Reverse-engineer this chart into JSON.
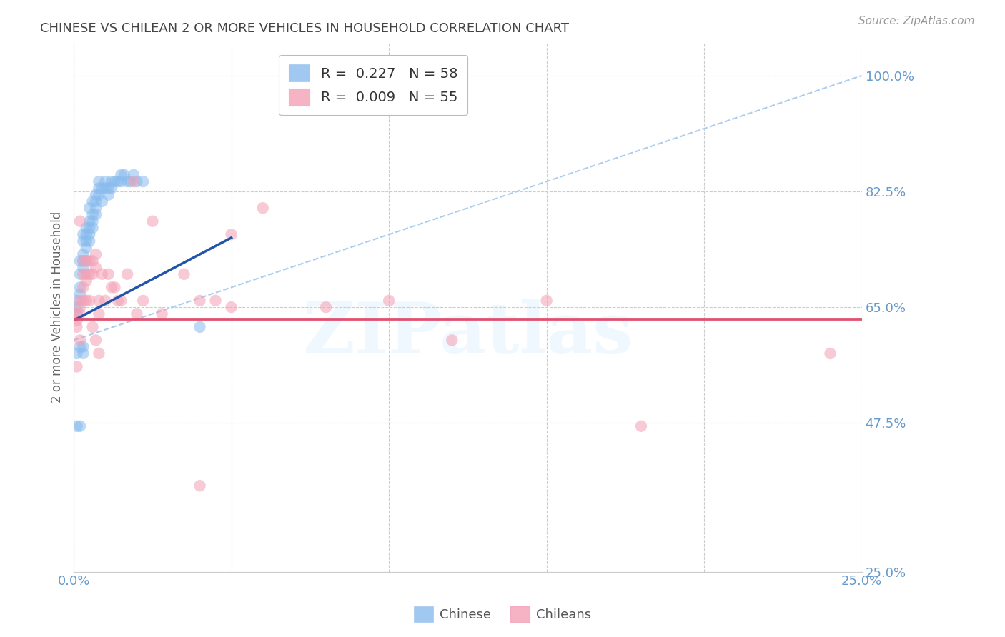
{
  "title": "CHINESE VS CHILEAN 2 OR MORE VEHICLES IN HOUSEHOLD CORRELATION CHART",
  "source": "Source: ZipAtlas.com",
  "ylabel": "2 or more Vehicles in Household",
  "xlim": [
    0.0,
    0.25
  ],
  "ylim": [
    0.25,
    1.05
  ],
  "ytick_vals": [
    0.25,
    0.475,
    0.65,
    0.825,
    1.0
  ],
  "ytick_labels": [
    "25.0%",
    "47.5%",
    "65.0%",
    "82.5%",
    "100.0%"
  ],
  "xtick_vals": [
    0.0,
    0.05,
    0.1,
    0.15,
    0.2,
    0.25
  ],
  "xtick_labels": [
    "0.0%",
    "",
    "",
    "",
    "",
    "25.0%"
  ],
  "legend_chinese": "R =  0.227   N = 58",
  "legend_chilean": "R =  0.009   N = 55",
  "watermark": "ZIPatlas",
  "title_color": "#444444",
  "axis_label_color": "#666666",
  "tick_color": "#6699cc",
  "grid_color": "#cccccc",
  "chinese_color": "#88bbee",
  "chilean_color": "#f4a0b5",
  "trend_chinese_color": "#2255aa",
  "trend_chilean_color": "#e05070",
  "ref_line_color": "#aaccee",
  "chinese_scatter_x": [
    0.001,
    0.001,
    0.001,
    0.002,
    0.002,
    0.002,
    0.002,
    0.003,
    0.003,
    0.003,
    0.003,
    0.003,
    0.004,
    0.004,
    0.004,
    0.004,
    0.004,
    0.005,
    0.005,
    0.005,
    0.005,
    0.005,
    0.006,
    0.006,
    0.006,
    0.006,
    0.007,
    0.007,
    0.007,
    0.007,
    0.008,
    0.008,
    0.008,
    0.009,
    0.009,
    0.01,
    0.01,
    0.011,
    0.011,
    0.012,
    0.012,
    0.013,
    0.014,
    0.015,
    0.015,
    0.016,
    0.017,
    0.018,
    0.019,
    0.02,
    0.022,
    0.001,
    0.002,
    0.001,
    0.002,
    0.003,
    0.003,
    0.04
  ],
  "chinese_scatter_y": [
    0.65,
    0.66,
    0.64,
    0.7,
    0.72,
    0.68,
    0.67,
    0.73,
    0.75,
    0.76,
    0.72,
    0.71,
    0.76,
    0.77,
    0.74,
    0.75,
    0.72,
    0.78,
    0.8,
    0.76,
    0.75,
    0.77,
    0.79,
    0.81,
    0.78,
    0.77,
    0.8,
    0.82,
    0.81,
    0.79,
    0.83,
    0.84,
    0.82,
    0.81,
    0.83,
    0.83,
    0.84,
    0.83,
    0.82,
    0.84,
    0.83,
    0.84,
    0.84,
    0.85,
    0.84,
    0.85,
    0.84,
    0.84,
    0.85,
    0.84,
    0.84,
    0.47,
    0.47,
    0.58,
    0.59,
    0.58,
    0.59,
    0.62
  ],
  "chilean_scatter_x": [
    0.001,
    0.001,
    0.001,
    0.002,
    0.002,
    0.002,
    0.003,
    0.003,
    0.003,
    0.004,
    0.004,
    0.004,
    0.005,
    0.005,
    0.006,
    0.006,
    0.007,
    0.007,
    0.008,
    0.008,
    0.009,
    0.01,
    0.011,
    0.012,
    0.013,
    0.014,
    0.015,
    0.017,
    0.019,
    0.02,
    0.022,
    0.025,
    0.028,
    0.035,
    0.04,
    0.045,
    0.05,
    0.06,
    0.08,
    0.1,
    0.12,
    0.15,
    0.24,
    0.001,
    0.002,
    0.002,
    0.003,
    0.004,
    0.005,
    0.006,
    0.007,
    0.008,
    0.05,
    0.18,
    0.04
  ],
  "chilean_scatter_y": [
    0.64,
    0.62,
    0.63,
    0.66,
    0.64,
    0.65,
    0.68,
    0.66,
    0.7,
    0.72,
    0.7,
    0.69,
    0.72,
    0.7,
    0.7,
    0.72,
    0.71,
    0.73,
    0.66,
    0.64,
    0.7,
    0.66,
    0.7,
    0.68,
    0.68,
    0.66,
    0.66,
    0.7,
    0.84,
    0.64,
    0.66,
    0.78,
    0.64,
    0.7,
    0.66,
    0.66,
    0.76,
    0.8,
    0.65,
    0.66,
    0.6,
    0.66,
    0.58,
    0.56,
    0.6,
    0.78,
    0.72,
    0.66,
    0.66,
    0.62,
    0.6,
    0.58,
    0.65,
    0.47,
    0.38
  ],
  "trend_chinese_x0": 0.0,
  "trend_chinese_y0": 0.63,
  "trend_chinese_x1": 0.05,
  "trend_chinese_y1": 0.755,
  "trend_chilean_y": 0.632,
  "ref_line_x0": 0.0,
  "ref_line_y0": 0.6,
  "ref_line_x1": 0.25,
  "ref_line_y1": 1.0
}
